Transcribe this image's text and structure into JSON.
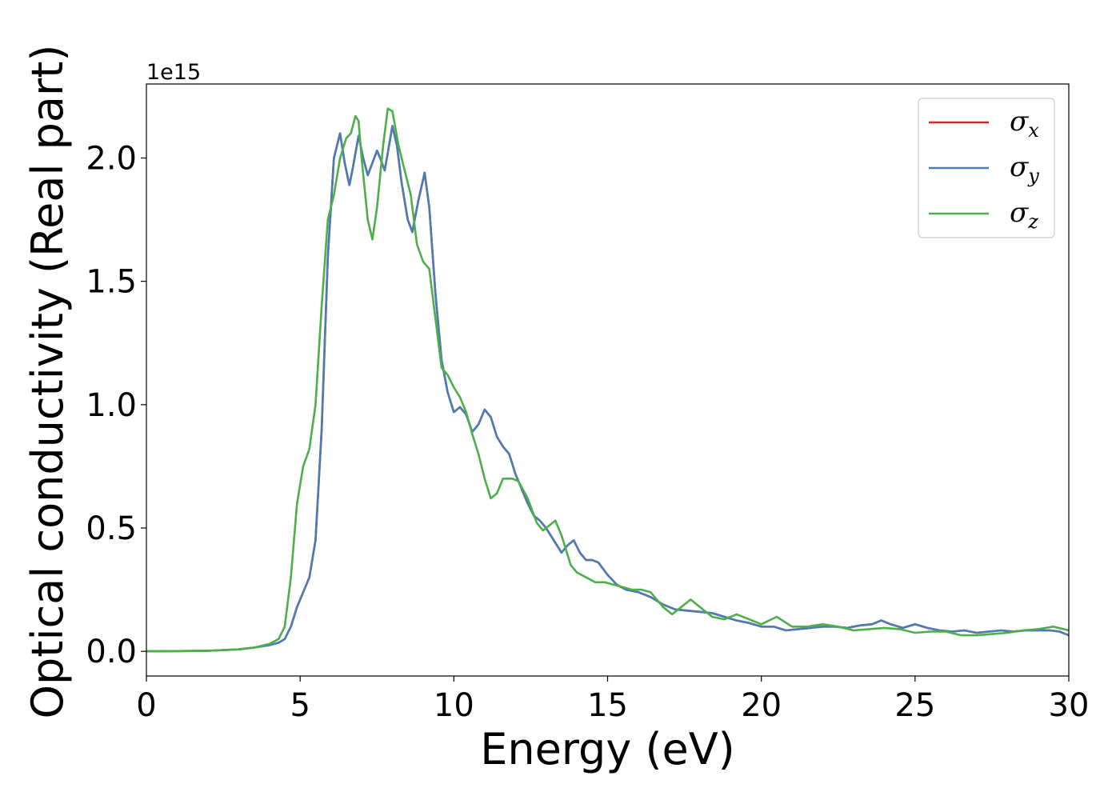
{
  "chart_data": {
    "type": "line",
    "xlabel": "Energy (eV)",
    "ylabel": "Optical conductivity (Real part)",
    "y_offset_label": "1e15",
    "xlim": [
      0,
      30
    ],
    "ylim": [
      -0.1,
      2.3
    ],
    "x_ticks": [
      0,
      5,
      10,
      15,
      20,
      25,
      30
    ],
    "x_tick_labels": [
      "0",
      "5",
      "10",
      "15",
      "20",
      "25",
      "30"
    ],
    "y_ticks": [
      0.0,
      0.5,
      1.0,
      1.5,
      2.0
    ],
    "y_tick_labels": [
      "0.0",
      "0.5",
      "1.0",
      "1.5",
      "2.0"
    ],
    "grid": false,
    "legend_position": "top-right",
    "series": [
      {
        "name": "σx",
        "legend_base": "σ",
        "legend_sub": "x",
        "color": "#d62728",
        "points": [
          [
            0,
            0
          ],
          [
            2,
            0.002
          ],
          [
            3,
            0.008
          ],
          [
            3.5,
            0.015
          ],
          [
            4,
            0.025
          ],
          [
            4.3,
            0.035
          ],
          [
            4.5,
            0.05
          ],
          [
            4.7,
            0.1
          ],
          [
            4.9,
            0.18
          ],
          [
            5.1,
            0.24
          ],
          [
            5.3,
            0.3
          ],
          [
            5.5,
            0.45
          ],
          [
            5.7,
            0.9
          ],
          [
            5.9,
            1.6
          ],
          [
            6.1,
            2.0
          ],
          [
            6.3,
            2.1
          ],
          [
            6.45,
            1.98
          ],
          [
            6.6,
            1.89
          ],
          [
            6.7,
            1.95
          ],
          [
            6.9,
            2.09
          ],
          [
            7.05,
            2.0
          ],
          [
            7.2,
            1.93
          ],
          [
            7.35,
            1.98
          ],
          [
            7.5,
            2.03
          ],
          [
            7.6,
            2.0
          ],
          [
            7.75,
            1.95
          ],
          [
            7.85,
            2.02
          ],
          [
            8.0,
            2.13
          ],
          [
            8.15,
            2.05
          ],
          [
            8.3,
            1.9
          ],
          [
            8.5,
            1.75
          ],
          [
            8.65,
            1.7
          ],
          [
            8.85,
            1.83
          ],
          [
            9.05,
            1.94
          ],
          [
            9.2,
            1.8
          ],
          [
            9.4,
            1.45
          ],
          [
            9.6,
            1.18
          ],
          [
            9.8,
            1.05
          ],
          [
            10.0,
            0.97
          ],
          [
            10.2,
            0.99
          ],
          [
            10.4,
            0.96
          ],
          [
            10.6,
            0.89
          ],
          [
            10.8,
            0.92
          ],
          [
            11.0,
            0.98
          ],
          [
            11.2,
            0.95
          ],
          [
            11.4,
            0.87
          ],
          [
            11.6,
            0.83
          ],
          [
            11.8,
            0.8
          ],
          [
            12.0,
            0.72
          ],
          [
            12.2,
            0.66
          ],
          [
            12.4,
            0.6
          ],
          [
            12.6,
            0.55
          ],
          [
            12.8,
            0.53
          ],
          [
            13.0,
            0.5
          ],
          [
            13.3,
            0.44
          ],
          [
            13.5,
            0.4
          ],
          [
            13.7,
            0.43
          ],
          [
            13.9,
            0.45
          ],
          [
            14.1,
            0.4
          ],
          [
            14.3,
            0.37
          ],
          [
            14.5,
            0.37
          ],
          [
            14.7,
            0.36
          ],
          [
            15.0,
            0.31
          ],
          [
            15.3,
            0.27
          ],
          [
            15.6,
            0.25
          ],
          [
            16.0,
            0.24
          ],
          [
            16.4,
            0.22
          ],
          [
            16.8,
            0.19
          ],
          [
            17.2,
            0.17
          ],
          [
            17.6,
            0.165
          ],
          [
            18.0,
            0.16
          ],
          [
            18.4,
            0.155
          ],
          [
            18.8,
            0.14
          ],
          [
            19.2,
            0.125
          ],
          [
            19.6,
            0.115
          ],
          [
            20.0,
            0.1
          ],
          [
            20.4,
            0.1
          ],
          [
            20.8,
            0.085
          ],
          [
            21.2,
            0.09
          ],
          [
            21.6,
            0.095
          ],
          [
            22.0,
            0.1
          ],
          [
            22.4,
            0.1
          ],
          [
            22.8,
            0.095
          ],
          [
            23.2,
            0.105
          ],
          [
            23.6,
            0.11
          ],
          [
            23.9,
            0.125
          ],
          [
            24.2,
            0.11
          ],
          [
            24.6,
            0.095
          ],
          [
            25.0,
            0.11
          ],
          [
            25.4,
            0.095
          ],
          [
            25.8,
            0.085
          ],
          [
            26.2,
            0.08
          ],
          [
            26.6,
            0.085
          ],
          [
            27.0,
            0.075
          ],
          [
            27.4,
            0.08
          ],
          [
            27.8,
            0.085
          ],
          [
            28.2,
            0.08
          ],
          [
            28.6,
            0.085
          ],
          [
            29.0,
            0.085
          ],
          [
            29.4,
            0.085
          ],
          [
            29.7,
            0.08
          ],
          [
            30.0,
            0.065
          ]
        ]
      },
      {
        "name": "σy",
        "legend_base": "σ",
        "legend_sub": "y",
        "color": "#4a7db5",
        "points": [
          [
            0,
            0
          ],
          [
            2,
            0.002
          ],
          [
            3,
            0.008
          ],
          [
            3.5,
            0.015
          ],
          [
            4,
            0.025
          ],
          [
            4.3,
            0.035
          ],
          [
            4.5,
            0.05
          ],
          [
            4.7,
            0.1
          ],
          [
            4.9,
            0.18
          ],
          [
            5.1,
            0.24
          ],
          [
            5.3,
            0.3
          ],
          [
            5.5,
            0.45
          ],
          [
            5.7,
            0.9
          ],
          [
            5.9,
            1.6
          ],
          [
            6.1,
            2.0
          ],
          [
            6.3,
            2.1
          ],
          [
            6.45,
            1.98
          ],
          [
            6.6,
            1.89
          ],
          [
            6.7,
            1.95
          ],
          [
            6.9,
            2.09
          ],
          [
            7.05,
            2.0
          ],
          [
            7.2,
            1.93
          ],
          [
            7.35,
            1.98
          ],
          [
            7.5,
            2.03
          ],
          [
            7.6,
            2.0
          ],
          [
            7.75,
            1.95
          ],
          [
            7.85,
            2.02
          ],
          [
            8.0,
            2.13
          ],
          [
            8.15,
            2.05
          ],
          [
            8.3,
            1.9
          ],
          [
            8.5,
            1.75
          ],
          [
            8.65,
            1.7
          ],
          [
            8.85,
            1.83
          ],
          [
            9.05,
            1.94
          ],
          [
            9.2,
            1.8
          ],
          [
            9.4,
            1.45
          ],
          [
            9.6,
            1.18
          ],
          [
            9.8,
            1.05
          ],
          [
            10.0,
            0.97
          ],
          [
            10.2,
            0.99
          ],
          [
            10.4,
            0.96
          ],
          [
            10.6,
            0.89
          ],
          [
            10.8,
            0.92
          ],
          [
            11.0,
            0.98
          ],
          [
            11.2,
            0.95
          ],
          [
            11.4,
            0.87
          ],
          [
            11.6,
            0.83
          ],
          [
            11.8,
            0.8
          ],
          [
            12.0,
            0.72
          ],
          [
            12.2,
            0.66
          ],
          [
            12.4,
            0.6
          ],
          [
            12.6,
            0.55
          ],
          [
            12.8,
            0.53
          ],
          [
            13.0,
            0.5
          ],
          [
            13.3,
            0.44
          ],
          [
            13.5,
            0.4
          ],
          [
            13.7,
            0.43
          ],
          [
            13.9,
            0.45
          ],
          [
            14.1,
            0.4
          ],
          [
            14.3,
            0.37
          ],
          [
            14.5,
            0.37
          ],
          [
            14.7,
            0.36
          ],
          [
            15.0,
            0.31
          ],
          [
            15.3,
            0.27
          ],
          [
            15.6,
            0.25
          ],
          [
            16.0,
            0.24
          ],
          [
            16.4,
            0.22
          ],
          [
            16.8,
            0.19
          ],
          [
            17.2,
            0.17
          ],
          [
            17.6,
            0.165
          ],
          [
            18.0,
            0.16
          ],
          [
            18.4,
            0.155
          ],
          [
            18.8,
            0.14
          ],
          [
            19.2,
            0.125
          ],
          [
            19.6,
            0.115
          ],
          [
            20.0,
            0.1
          ],
          [
            20.4,
            0.1
          ],
          [
            20.8,
            0.085
          ],
          [
            21.2,
            0.09
          ],
          [
            21.6,
            0.095
          ],
          [
            22.0,
            0.1
          ],
          [
            22.4,
            0.1
          ],
          [
            22.8,
            0.095
          ],
          [
            23.2,
            0.105
          ],
          [
            23.6,
            0.11
          ],
          [
            23.9,
            0.125
          ],
          [
            24.2,
            0.11
          ],
          [
            24.6,
            0.095
          ],
          [
            25.0,
            0.11
          ],
          [
            25.4,
            0.095
          ],
          [
            25.8,
            0.085
          ],
          [
            26.2,
            0.08
          ],
          [
            26.6,
            0.085
          ],
          [
            27.0,
            0.075
          ],
          [
            27.4,
            0.08
          ],
          [
            27.8,
            0.085
          ],
          [
            28.2,
            0.08
          ],
          [
            28.6,
            0.085
          ],
          [
            29.0,
            0.085
          ],
          [
            29.4,
            0.085
          ],
          [
            29.7,
            0.08
          ],
          [
            30.0,
            0.065
          ]
        ]
      },
      {
        "name": "σz",
        "legend_base": "σ",
        "legend_sub": "z",
        "color": "#4daf4a",
        "points": [
          [
            0,
            0
          ],
          [
            2,
            0.002
          ],
          [
            3,
            0.008
          ],
          [
            3.5,
            0.015
          ],
          [
            4,
            0.03
          ],
          [
            4.3,
            0.05
          ],
          [
            4.5,
            0.1
          ],
          [
            4.7,
            0.3
          ],
          [
            4.9,
            0.6
          ],
          [
            5.1,
            0.75
          ],
          [
            5.3,
            0.82
          ],
          [
            5.5,
            1.0
          ],
          [
            5.7,
            1.4
          ],
          [
            5.9,
            1.75
          ],
          [
            6.1,
            1.85
          ],
          [
            6.3,
            2.0
          ],
          [
            6.5,
            2.08
          ],
          [
            6.65,
            2.1
          ],
          [
            6.8,
            2.17
          ],
          [
            6.9,
            2.15
          ],
          [
            7.0,
            2.0
          ],
          [
            7.2,
            1.75
          ],
          [
            7.35,
            1.67
          ],
          [
            7.5,
            1.8
          ],
          [
            7.7,
            2.05
          ],
          [
            7.85,
            2.2
          ],
          [
            8.0,
            2.19
          ],
          [
            8.2,
            2.05
          ],
          [
            8.4,
            1.95
          ],
          [
            8.6,
            1.85
          ],
          [
            8.8,
            1.65
          ],
          [
            9.0,
            1.58
          ],
          [
            9.2,
            1.55
          ],
          [
            9.4,
            1.35
          ],
          [
            9.6,
            1.15
          ],
          [
            9.8,
            1.12
          ],
          [
            10.0,
            1.07
          ],
          [
            10.2,
            1.03
          ],
          [
            10.4,
            0.97
          ],
          [
            10.6,
            0.88
          ],
          [
            10.8,
            0.8
          ],
          [
            11.0,
            0.7
          ],
          [
            11.2,
            0.62
          ],
          [
            11.4,
            0.64
          ],
          [
            11.6,
            0.7
          ],
          [
            11.9,
            0.7
          ],
          [
            12.1,
            0.69
          ],
          [
            12.4,
            0.62
          ],
          [
            12.7,
            0.52
          ],
          [
            12.9,
            0.49
          ],
          [
            13.1,
            0.51
          ],
          [
            13.3,
            0.53
          ],
          [
            13.5,
            0.47
          ],
          [
            13.8,
            0.35
          ],
          [
            14.0,
            0.32
          ],
          [
            14.3,
            0.3
          ],
          [
            14.6,
            0.28
          ],
          [
            14.9,
            0.28
          ],
          [
            15.2,
            0.27
          ],
          [
            15.5,
            0.26
          ],
          [
            15.8,
            0.25
          ],
          [
            16.1,
            0.25
          ],
          [
            16.4,
            0.24
          ],
          [
            16.8,
            0.18
          ],
          [
            17.1,
            0.15
          ],
          [
            17.4,
            0.18
          ],
          [
            17.7,
            0.21
          ],
          [
            18.0,
            0.18
          ],
          [
            18.4,
            0.14
          ],
          [
            18.8,
            0.13
          ],
          [
            19.2,
            0.15
          ],
          [
            19.6,
            0.13
          ],
          [
            20.0,
            0.11
          ],
          [
            20.5,
            0.14
          ],
          [
            21.0,
            0.1
          ],
          [
            21.5,
            0.1
          ],
          [
            22.0,
            0.11
          ],
          [
            22.5,
            0.1
          ],
          [
            23.0,
            0.085
          ],
          [
            23.5,
            0.09
          ],
          [
            24.0,
            0.095
          ],
          [
            24.5,
            0.09
          ],
          [
            25.0,
            0.075
          ],
          [
            25.5,
            0.08
          ],
          [
            26.0,
            0.08
          ],
          [
            26.5,
            0.065
          ],
          [
            27.0,
            0.065
          ],
          [
            27.5,
            0.07
          ],
          [
            28.0,
            0.075
          ],
          [
            28.5,
            0.085
          ],
          [
            29.0,
            0.09
          ],
          [
            29.5,
            0.1
          ],
          [
            30.0,
            0.085
          ]
        ]
      }
    ]
  }
}
